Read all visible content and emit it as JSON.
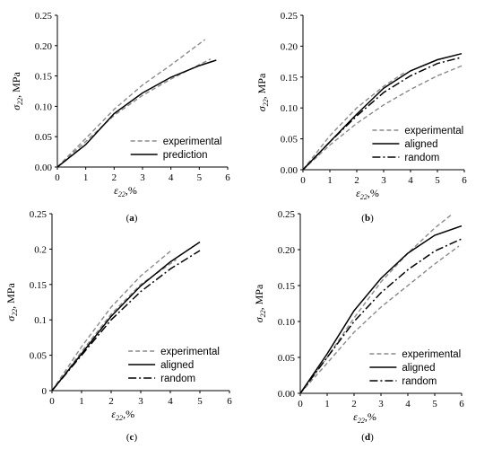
{
  "chart_data": [
    {
      "type": "line",
      "panel_label": "(a)",
      "xlabel": "ε22,%",
      "ylabel": "σ22, MPa",
      "xlim": [
        0,
        6
      ],
      "ylim": [
        0,
        0.25
      ],
      "xticks": [
        "0",
        "1",
        "2",
        "3",
        "4",
        "5",
        "6"
      ],
      "yticks": [
        "0.00",
        "0.05",
        "0.10",
        "0.15",
        "0.20",
        "0.25"
      ],
      "legend_position": "bottom-right",
      "legend": [
        {
          "label": "experimental",
          "style": "dashed-gray"
        },
        {
          "label": "prediction",
          "style": "solid"
        }
      ],
      "series": [
        {
          "name": "experimental",
          "style": "dashed-gray",
          "x": [
            0,
            1,
            2,
            3,
            4,
            5.2
          ],
          "y": [
            0,
            0.047,
            0.095,
            0.135,
            0.168,
            0.21
          ]
        },
        {
          "name": "experimental",
          "style": "dashed-gray",
          "x": [
            0,
            1,
            2,
            3,
            4,
            5.4
          ],
          "y": [
            0,
            0.042,
            0.085,
            0.118,
            0.145,
            0.178
          ]
        },
        {
          "name": "prediction",
          "style": "solid",
          "x": [
            0,
            1,
            2,
            3,
            4,
            5,
            5.6
          ],
          "y": [
            0,
            0.037,
            0.088,
            0.122,
            0.148,
            0.167,
            0.176
          ]
        }
      ]
    },
    {
      "type": "line",
      "panel_label": "(b)",
      "xlabel": "ε22,%",
      "ylabel": "σ22, MPa",
      "xlim": [
        0,
        6
      ],
      "ylim": [
        0,
        0.25
      ],
      "xticks": [
        "0",
        "1",
        "2",
        "3",
        "4",
        "5",
        "6"
      ],
      "yticks": [
        "0.00",
        "0.05",
        "0.10",
        "0.15",
        "0.20",
        "0.25"
      ],
      "legend_position": "bottom-right",
      "legend": [
        {
          "label": "experimental",
          "style": "dashed-gray"
        },
        {
          "label": "aligned",
          "style": "solid"
        },
        {
          "label": "random",
          "style": "dash-dot"
        }
      ],
      "series": [
        {
          "name": "experimental",
          "style": "dashed-gray",
          "x": [
            0,
            1,
            2,
            3,
            4,
            5,
            5.9
          ],
          "y": [
            0,
            0.04,
            0.075,
            0.105,
            0.13,
            0.152,
            0.168
          ]
        },
        {
          "name": "experimental",
          "style": "dashed-gray",
          "x": [
            0,
            1,
            2,
            3,
            3.8
          ],
          "y": [
            0,
            0.055,
            0.1,
            0.135,
            0.158
          ]
        },
        {
          "name": "aligned",
          "style": "solid",
          "x": [
            0,
            1,
            2,
            3,
            4,
            5,
            5.9
          ],
          "y": [
            0,
            0.045,
            0.09,
            0.132,
            0.16,
            0.178,
            0.188
          ]
        },
        {
          "name": "random",
          "style": "dash-dot",
          "x": [
            0,
            1,
            2,
            3,
            4,
            5,
            5.9
          ],
          "y": [
            0,
            0.045,
            0.087,
            0.125,
            0.152,
            0.172,
            0.182
          ]
        }
      ]
    },
    {
      "type": "line",
      "panel_label": "(c)",
      "xlabel": "ε22,%",
      "ylabel": "σ22, MPa",
      "xlim": [
        0,
        6
      ],
      "ylim": [
        0,
        0.25
      ],
      "xticks": [
        "0",
        "1",
        "2",
        "3",
        "4",
        "5",
        "6"
      ],
      "yticks": [
        "0",
        "0.05",
        "0.1",
        "0.15",
        "0.2",
        "0.25"
      ],
      "legend_position": "bottom-right",
      "legend": [
        {
          "label": "experimental",
          "style": "dashed-gray"
        },
        {
          "label": "aligned",
          "style": "solid"
        },
        {
          "label": "random",
          "style": "dash-dot"
        }
      ],
      "series": [
        {
          "name": "experimental",
          "style": "dashed-gray",
          "x": [
            0,
            1,
            2,
            3,
            4
          ],
          "y": [
            0,
            0.062,
            0.118,
            0.162,
            0.197
          ]
        },
        {
          "name": "experimental",
          "style": "dashed-gray",
          "x": [
            0,
            1,
            2,
            3,
            4.2
          ],
          "y": [
            0,
            0.055,
            0.108,
            0.15,
            0.185
          ]
        },
        {
          "name": "aligned",
          "style": "solid",
          "x": [
            0,
            1,
            2,
            3,
            4,
            5
          ],
          "y": [
            0,
            0.052,
            0.105,
            0.148,
            0.182,
            0.21
          ]
        },
        {
          "name": "random",
          "style": "dash-dot",
          "x": [
            0,
            1,
            2,
            3,
            4,
            5
          ],
          "y": [
            0,
            0.05,
            0.1,
            0.14,
            0.172,
            0.198
          ]
        }
      ]
    },
    {
      "type": "line",
      "panel_label": "(d)",
      "xlabel": "ε22,%",
      "ylabel": "σ22, MPa",
      "xlim": [
        0,
        6
      ],
      "ylim": [
        0,
        0.25
      ],
      "xticks": [
        "0",
        "1",
        "2",
        "3",
        "4",
        "5",
        "6"
      ],
      "yticks": [
        "0.00",
        "0.05",
        "0.10",
        "0.15",
        "0.20",
        "0.25"
      ],
      "legend_position": "bottom-right",
      "legend": [
        {
          "label": "experimental",
          "style": "dashed-gray"
        },
        {
          "label": "aligned",
          "style": "solid"
        },
        {
          "label": "random",
          "style": "dash-dot"
        }
      ],
      "series": [
        {
          "name": "experimental",
          "style": "dashed-gray",
          "x": [
            0,
            1,
            2,
            3,
            4,
            5,
            5.6
          ],
          "y": [
            0,
            0.05,
            0.105,
            0.155,
            0.195,
            0.23,
            0.248
          ]
        },
        {
          "name": "experimental",
          "style": "dashed-gray",
          "x": [
            0,
            1,
            2,
            3,
            4,
            5,
            5.9
          ],
          "y": [
            0,
            0.042,
            0.085,
            0.12,
            0.15,
            0.18,
            0.205
          ]
        },
        {
          "name": "aligned",
          "style": "solid",
          "x": [
            0,
            1,
            2,
            3,
            4,
            5,
            6
          ],
          "y": [
            0,
            0.055,
            0.115,
            0.16,
            0.195,
            0.22,
            0.233
          ]
        },
        {
          "name": "random",
          "style": "dash-dot",
          "x": [
            0,
            1,
            2,
            3,
            4,
            5,
            6
          ],
          "y": [
            0,
            0.05,
            0.1,
            0.14,
            0.172,
            0.198,
            0.215
          ]
        }
      ]
    }
  ]
}
